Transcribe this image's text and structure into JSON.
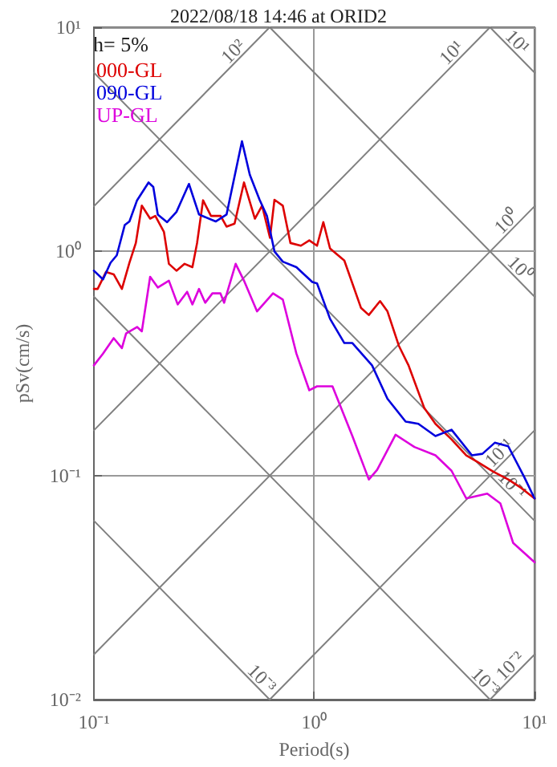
{
  "chart_data": {
    "type": "line",
    "title": "2022/08/18 14:46 at ORID2",
    "xlabel": "Period(s)",
    "ylabel": "pSv(cm/s)",
    "legend_title": "h= 5%",
    "log": "xy",
    "grid": true,
    "legend": "top left",
    "marker": "none",
    "line_style": "solid",
    "xlim": [
      0.1,
      10
    ],
    "ylim": [
      0.01,
      10
    ],
    "xticks": [
      {
        "value": 0.1,
        "label": "10⁻¹"
      },
      {
        "value": 1,
        "label": "10⁰"
      },
      {
        "value": 10,
        "label": "10¹"
      }
    ],
    "yticks": [
      {
        "value": 0.01,
        "label": "10⁻²"
      },
      {
        "value": 0.1,
        "label": "10⁻¹"
      },
      {
        "value": 1,
        "label": "10⁰"
      },
      {
        "value": 10,
        "label": "10¹"
      }
    ],
    "series": [
      {
        "name": "000-GL",
        "color": "#dd0000",
        "x": [
          0.1,
          0.104,
          0.1135,
          0.123,
          0.134,
          0.145,
          0.155,
          0.165,
          0.18,
          0.19,
          0.208,
          0.219,
          0.237,
          0.258,
          0.28,
          0.294,
          0.313,
          0.34,
          0.376,
          0.4,
          0.435,
          0.48,
          0.538,
          0.58,
          0.63,
          0.66,
          0.72,
          0.78,
          0.87,
          0.95,
          1.03,
          1.1,
          1.18,
          1.37,
          1.63,
          1.77,
          1.99,
          2.15,
          2.42,
          2.68,
          3.16,
          3.55,
          4.2,
          4.9,
          5.5,
          6.5,
          7.6,
          8.7,
          10
        ],
        "values": [
          0.68,
          0.68,
          0.81,
          0.79,
          0.68,
          0.89,
          1.09,
          1.6,
          1.4,
          1.44,
          1.22,
          0.88,
          0.82,
          0.88,
          0.85,
          1.09,
          1.69,
          1.44,
          1.44,
          1.29,
          1.33,
          2.03,
          1.4,
          1.6,
          1.15,
          1.7,
          1.6,
          1.09,
          1.06,
          1.12,
          1.06,
          1.35,
          1.03,
          0.91,
          0.56,
          0.52,
          0.6,
          0.54,
          0.38,
          0.31,
          0.2,
          0.17,
          0.145,
          0.123,
          0.115,
          0.104,
          0.096,
          0.088,
          0.079
        ]
      },
      {
        "name": "090-GL",
        "color": "#0000dd",
        "x": [
          0.1,
          0.11,
          0.119,
          0.127,
          0.138,
          0.145,
          0.157,
          0.177,
          0.186,
          0.195,
          0.215,
          0.237,
          0.27,
          0.3,
          0.357,
          0.4,
          0.47,
          0.51,
          0.565,
          0.61,
          0.66,
          0.72,
          0.83,
          0.98,
          1.03,
          1.18,
          1.37,
          1.49,
          1.83,
          2.15,
          2.6,
          2.97,
          3.55,
          4.2,
          5.2,
          5.8,
          6.6,
          7.6,
          9.0,
          10
        ],
        "values": [
          0.82,
          0.75,
          0.89,
          0.96,
          1.31,
          1.36,
          1.69,
          2.03,
          1.94,
          1.46,
          1.35,
          1.5,
          2.0,
          1.46,
          1.36,
          1.46,
          3.1,
          2.2,
          1.7,
          1.44,
          1.0,
          0.9,
          0.85,
          0.73,
          0.72,
          0.5,
          0.39,
          0.39,
          0.31,
          0.22,
          0.174,
          0.17,
          0.15,
          0.16,
          0.123,
          0.125,
          0.14,
          0.135,
          0.098,
          0.079
        ]
      },
      {
        "name": "UP-GL",
        "color": "#dd00dd",
        "x": [
          0.1,
          0.11,
          0.123,
          0.134,
          0.14,
          0.157,
          0.165,
          0.18,
          0.195,
          0.219,
          0.24,
          0.265,
          0.28,
          0.3,
          0.32,
          0.345,
          0.375,
          0.39,
          0.44,
          0.48,
          0.55,
          0.65,
          0.72,
          0.83,
          0.95,
          1.03,
          1.21,
          1.49,
          1.77,
          1.93,
          2.34,
          2.85,
          3.55,
          4.2,
          4.9,
          6.1,
          7.0,
          8.0,
          10
        ],
        "values": [
          0.31,
          0.35,
          0.41,
          0.37,
          0.43,
          0.46,
          0.44,
          0.77,
          0.69,
          0.74,
          0.58,
          0.66,
          0.58,
          0.68,
          0.59,
          0.65,
          0.65,
          0.59,
          0.88,
          0.74,
          0.54,
          0.65,
          0.61,
          0.35,
          0.24,
          0.25,
          0.25,
          0.15,
          0.096,
          0.106,
          0.152,
          0.134,
          0.123,
          0.105,
          0.079,
          0.083,
          0.075,
          0.05,
          0.041
        ]
      },
      {
        "color": "#808080",
        "x": [
          0.1,
          0.628
        ],
        "values": [
          1.59,
          10
        ]
      },
      {
        "color": "#808080",
        "x": [
          0.1,
          6.28
        ],
        "values": [
          0.159,
          10
        ]
      },
      {
        "color": "#808080",
        "x": [
          0.1,
          10
        ],
        "values": [
          0.0159,
          1.59
        ]
      },
      {
        "color": "#808080",
        "x": [
          0.628,
          10
        ],
        "values": [
          0.01,
          0.159
        ]
      },
      {
        "color": "#808080",
        "x": [
          6.28,
          10
        ],
        "values": [
          0.01,
          0.0159
        ]
      },
      {
        "color": "#808080",
        "x": [
          6.28,
          10
        ],
        "values": [
          10,
          6.28
        ]
      },
      {
        "color": "#808080",
        "x": [
          0.628,
          10
        ],
        "values": [
          10,
          0.628
        ]
      },
      {
        "color": "#808080",
        "x": [
          0.1,
          10
        ],
        "values": [
          6.28,
          0.0628
        ]
      },
      {
        "color": "#808080",
        "x": [
          0.1,
          6.28
        ],
        "values": [
          0.628,
          0.01
        ]
      },
      {
        "color": "#808080",
        "x": [
          0.1,
          0.628
        ],
        "values": [
          0.0628,
          0.01
        ]
      }
    ],
    "annotations": [
      {
        "text": "10²",
        "x": 0.46,
        "y": 7.3
      },
      {
        "text": "10¹",
        "x": 4.5,
        "y": 7.2
      },
      {
        "text": "10⁰",
        "x": 8.0,
        "y": 1.27
      },
      {
        "text": "10⁻¹",
        "x": 7.4,
        "y": 0.118
      },
      {
        "text": "10⁻²",
        "x": 8.3,
        "y": 0.0132
      },
      {
        "text": "10¹",
        "x": 7.8,
        "y": 8.05
      },
      {
        "text": "10⁰",
        "x": 8.0,
        "y": 0.785
      },
      {
        "text": "10⁻¹",
        "x": 7.4,
        "y": 0.085
      },
      {
        "text": "10⁻³",
        "x": 0.54,
        "y": 0.0116
      },
      {
        "text": "10⁻³",
        "x": 5.6,
        "y": 0.0112
      }
    ]
  }
}
